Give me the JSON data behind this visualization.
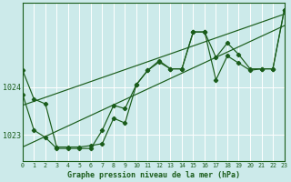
{
  "bg_color": "#cceaea",
  "grid_color": "#ffffff",
  "line_color": "#1a5c1a",
  "title": "Graphe pression niveau de la mer (hPa)",
  "xlim": [
    0,
    23
  ],
  "ylim": [
    1022.45,
    1025.75
  ],
  "yticks": [
    1023,
    1024
  ],
  "xticks": [
    0,
    1,
    2,
    3,
    4,
    5,
    6,
    7,
    8,
    9,
    10,
    11,
    12,
    13,
    14,
    15,
    16,
    17,
    18,
    19,
    20,
    21,
    22,
    23
  ],
  "jagged1_y": [
    1024.35,
    1023.75,
    1023.65,
    1022.75,
    1022.75,
    1022.75,
    1022.78,
    1022.82,
    1023.35,
    1023.25,
    1024.05,
    1024.35,
    1024.55,
    1024.38,
    1024.38,
    1025.15,
    1025.15,
    1024.15,
    1024.65,
    1024.5,
    1024.35,
    1024.38,
    1024.38,
    1025.6
  ],
  "jagged2_y": [
    1023.85,
    1023.1,
    1022.95,
    1022.72,
    1022.72,
    1022.72,
    1022.72,
    1023.1,
    1023.62,
    1023.55,
    1024.05,
    1024.35,
    1024.52,
    1024.38,
    1024.38,
    1025.15,
    1025.15,
    1024.62,
    1024.92,
    1024.68,
    1024.38,
    1024.38,
    1024.38,
    1025.6
  ],
  "trend1_x": [
    0,
    23
  ],
  "trend1_y": [
    1023.62,
    1025.52
  ],
  "trend2_x": [
    0,
    23
  ],
  "trend2_y": [
    1022.75,
    1025.28
  ]
}
